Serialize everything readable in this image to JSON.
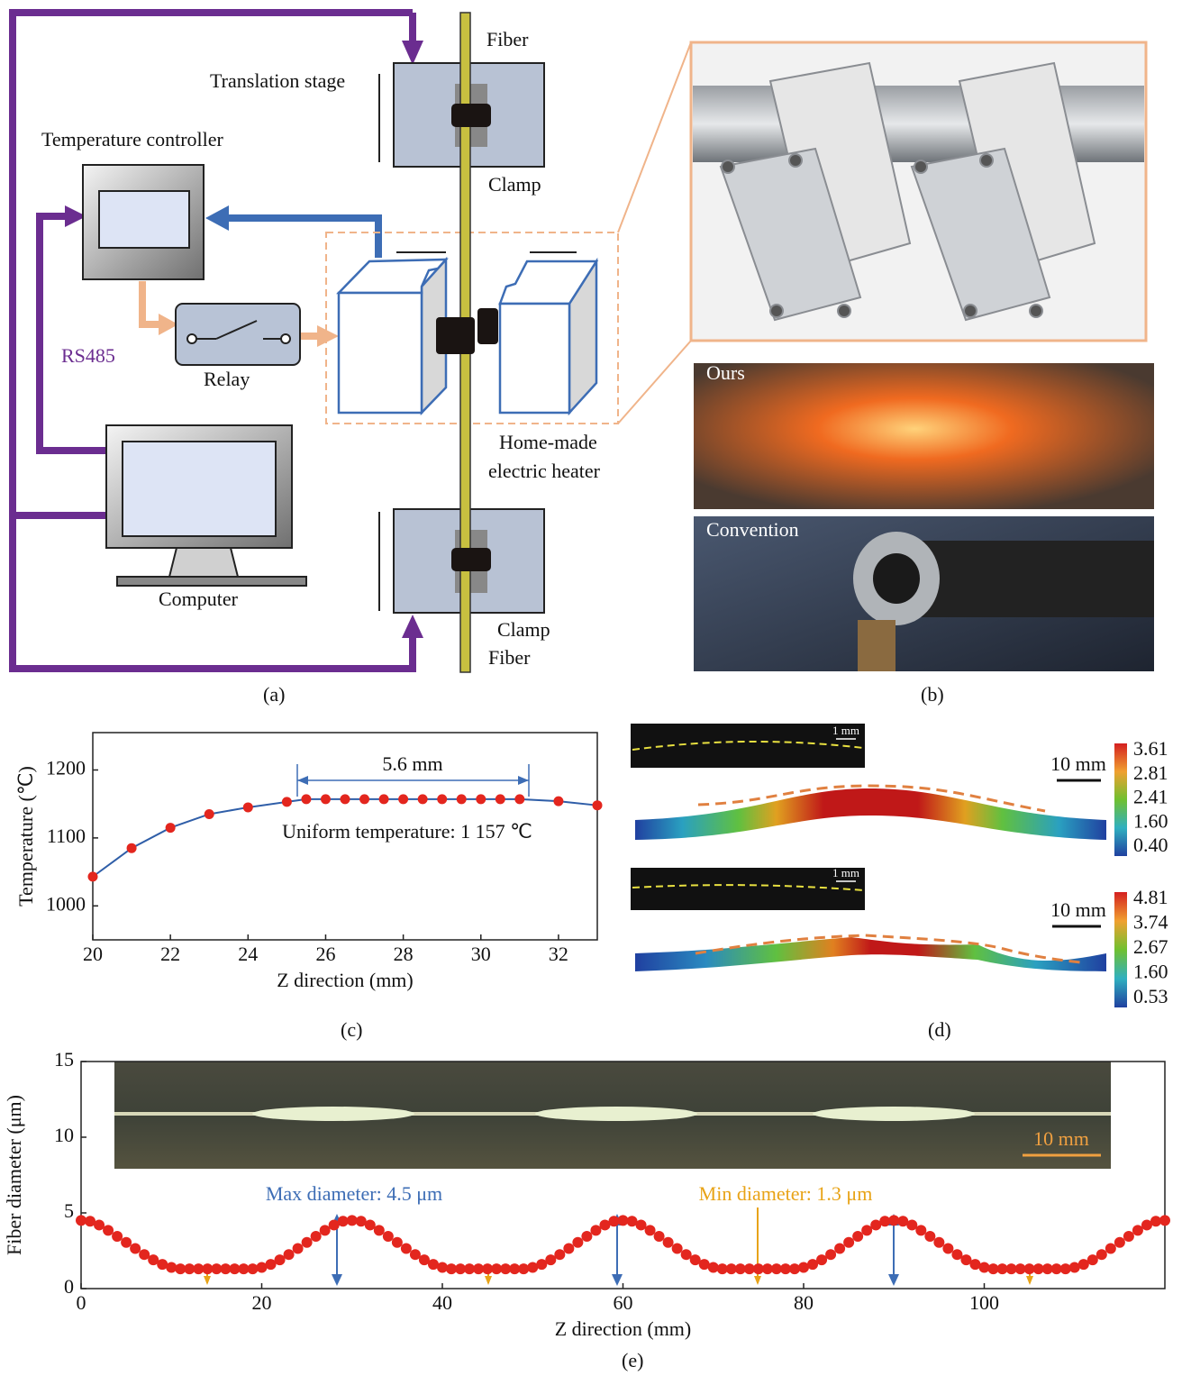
{
  "panel_a": {
    "labels": {
      "fiber_top": "Fiber",
      "translation_stage": "Translation stage",
      "temperature_controller": "Temperature controller",
      "clamp_top": "Clamp",
      "rs485": "RS485",
      "relay": "Relay",
      "computer": "Computer",
      "heater_line1": "Home-made",
      "heater_line2": "electric heater",
      "clamp_bottom": "Clamp",
      "fiber_bottom": "Fiber"
    },
    "caption": "(a)"
  },
  "panel_b": {
    "labels": [
      "Ours",
      "Convention"
    ],
    "caption": "(b)"
  },
  "panel_d": {
    "insets": [
      {
        "scale": "1 mm",
        "model_scale": "10 mm",
        "colorbar": [
          "3.61",
          "2.81",
          "2.41",
          "1.60",
          "0.40"
        ]
      },
      {
        "scale": "1 mm",
        "model_scale": "10 mm",
        "colorbar": [
          "4.81",
          "3.74",
          "2.67",
          "1.60",
          "0.53"
        ]
      }
    ],
    "caption": "(d)"
  },
  "chart_data": [
    {
      "type": "line",
      "xlabel": "Z direction (mm)",
      "ylabel": "Temperature (℃)",
      "x": [
        20,
        21,
        22,
        23,
        24,
        25,
        25.5,
        26,
        26.5,
        27,
        27.5,
        28,
        28.5,
        29,
        29.5,
        30,
        30.5,
        31,
        32,
        33
      ],
      "series": [
        {
          "color": "#2f5ea8",
          "marker_color": "#e3261e",
          "values": [
            1043,
            1085,
            1115,
            1135,
            1145,
            1153,
            1157,
            1157,
            1157,
            1157,
            1157,
            1157,
            1157,
            1157,
            1157,
            1157,
            1157,
            1157,
            1154,
            1148
          ]
        }
      ],
      "xlim": [
        20,
        33
      ],
      "ylim": [
        950,
        1255
      ],
      "xticks": [
        20,
        22,
        24,
        26,
        28,
        30,
        32
      ],
      "yticks": [
        1000,
        1100,
        1200
      ],
      "annotations": [
        "5.6 mm",
        "Uniform temperature: 1 157 ℃"
      ],
      "caption": "(c)"
    },
    {
      "type": "scatter",
      "xlabel": "Z direction (mm)",
      "ylabel": "Fiber diameter (μm)",
      "x": [
        0,
        1,
        2,
        3,
        4,
        5,
        6,
        7,
        8,
        9,
        10,
        11,
        12,
        13,
        14,
        15,
        16,
        17,
        18,
        19,
        20,
        21,
        22,
        23,
        24,
        25,
        26,
        27,
        28,
        29,
        30,
        31,
        32,
        33,
        34,
        35,
        36,
        37,
        38,
        39,
        40,
        41,
        42,
        43,
        44,
        45,
        46,
        47,
        48,
        49,
        50,
        51,
        52,
        53,
        54,
        55,
        56,
        57,
        58,
        59,
        60,
        61,
        62,
        63,
        64,
        65,
        66,
        67,
        68,
        69,
        70,
        71,
        72,
        73,
        74,
        75,
        76,
        77,
        78,
        79,
        80,
        81,
        82,
        83,
        84,
        85,
        86,
        87,
        88,
        89,
        90,
        91,
        92,
        93,
        94,
        95,
        96,
        97,
        98,
        99,
        100,
        101,
        102,
        103,
        104,
        105,
        106,
        107,
        108,
        109,
        110,
        111,
        112,
        113,
        114,
        115,
        116,
        117,
        118,
        119,
        120
      ],
      "series": [
        {
          "color": "#e3261e",
          "values": [
            4.5,
            4.45,
            4.2,
            3.85,
            3.45,
            3.05,
            2.65,
            2.25,
            1.9,
            1.6,
            1.4,
            1.3,
            1.3,
            1.3,
            1.3,
            1.3,
            1.3,
            1.3,
            1.3,
            1.3,
            1.4,
            1.6,
            1.9,
            2.25,
            2.65,
            3.05,
            3.45,
            3.85,
            4.2,
            4.45,
            4.5,
            4.45,
            4.2,
            3.85,
            3.45,
            3.05,
            2.65,
            2.25,
            1.9,
            1.6,
            1.4,
            1.3,
            1.3,
            1.3,
            1.3,
            1.3,
            1.3,
            1.3,
            1.3,
            1.3,
            1.4,
            1.6,
            1.9,
            2.25,
            2.65,
            3.05,
            3.45,
            3.85,
            4.2,
            4.45,
            4.5,
            4.45,
            4.2,
            3.85,
            3.45,
            3.05,
            2.65,
            2.25,
            1.9,
            1.6,
            1.4,
            1.3,
            1.3,
            1.3,
            1.3,
            1.3,
            1.3,
            1.3,
            1.3,
            1.3,
            1.4,
            1.6,
            1.9,
            2.25,
            2.65,
            3.05,
            3.45,
            3.85,
            4.2,
            4.45,
            4.5,
            4.45,
            4.2,
            3.85,
            3.45,
            3.05,
            2.65,
            2.25,
            1.9,
            1.6,
            1.4,
            1.3,
            1.3,
            1.3,
            1.3,
            1.3,
            1.3,
            1.3,
            1.3,
            1.3,
            1.4,
            1.6,
            1.9,
            2.25,
            2.65,
            3.05,
            3.45,
            3.85,
            4.2,
            4.45,
            4.5
          ]
        }
      ],
      "xlim": [
        0,
        120
      ],
      "ylim": [
        0,
        15
      ],
      "xticks": [
        0,
        20,
        40,
        60,
        80,
        100
      ],
      "yticks": [
        0,
        5,
        10,
        15
      ],
      "inset_scale": "10 mm",
      "annotations": [
        "Max diameter: 4.5 μm",
        "Min diameter: 1.3 μm"
      ],
      "caption": "(e)"
    }
  ]
}
